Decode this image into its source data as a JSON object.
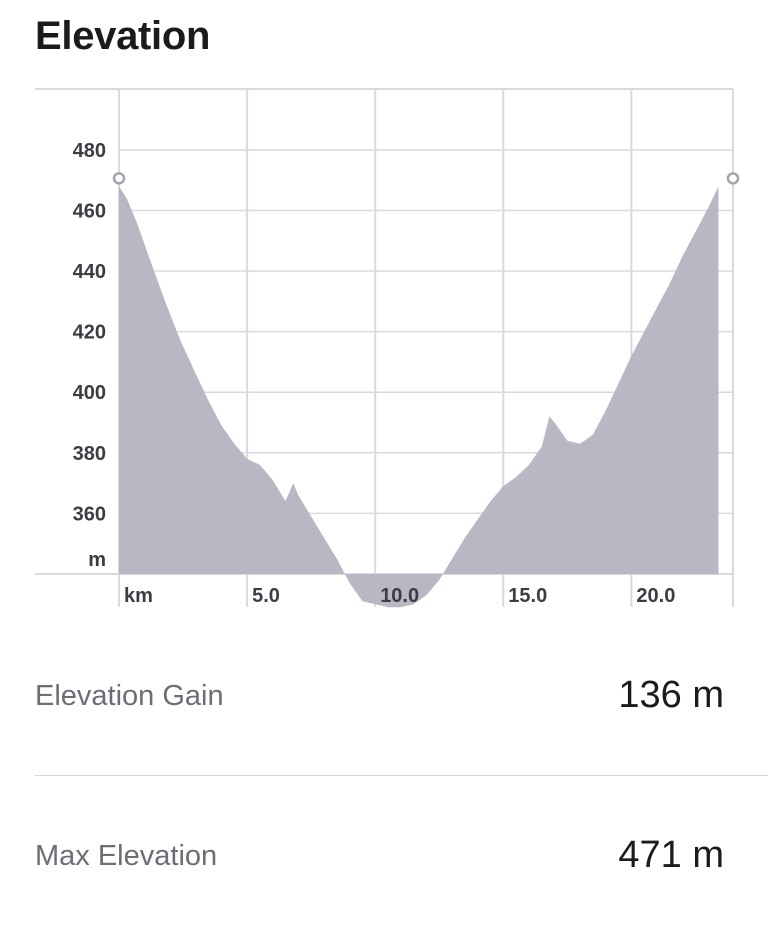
{
  "header": {
    "title": "Elevation"
  },
  "chart_data": {
    "type": "area",
    "x_unit": "km",
    "y_unit": "m",
    "x_ticks": [
      "5.0",
      "10.0",
      "15.0",
      "20.0"
    ],
    "y_ticks": [
      "360",
      "380",
      "400",
      "420",
      "440",
      "460",
      "480"
    ],
    "xlim": [
      0,
      24
    ],
    "ylim": [
      340,
      490
    ],
    "grid": true,
    "fill_color": "#b8b8c4",
    "x": [
      0,
      0.3,
      0.7,
      1.2,
      1.8,
      2.4,
      3.0,
      3.5,
      4.0,
      4.5,
      5.0,
      5.5,
      6.0,
      6.5,
      6.8,
      7.0,
      7.5,
      8.0,
      8.5,
      9.0,
      9.5,
      10.0,
      10.5,
      11.0,
      11.5,
      12.0,
      12.5,
      13.0,
      13.5,
      14.0,
      14.5,
      15.0,
      15.5,
      16.0,
      16.5,
      16.8,
      17.0,
      17.5,
      18.0,
      18.5,
      19.0,
      19.5,
      20.0,
      20.5,
      21.0,
      21.5,
      22.0,
      22.5,
      23.0,
      23.4
    ],
    "y": [
      468,
      464,
      456,
      444,
      430,
      417,
      406,
      397,
      389,
      383,
      378,
      376,
      371,
      364,
      370,
      366,
      359,
      352,
      345,
      337,
      331,
      330,
      329,
      329,
      330,
      333,
      338,
      345,
      352,
      358,
      364,
      369,
      372,
      376,
      382,
      392,
      390,
      384,
      383,
      386,
      394,
      403,
      412,
      420,
      428,
      436,
      445,
      453,
      461,
      468
    ],
    "endpoints": "hollow circles"
  },
  "stats": [
    {
      "label": "Elevation Gain",
      "value": "136 m"
    },
    {
      "label": "Max Elevation",
      "value": "471 m"
    }
  ],
  "colors": {
    "area": "#b8b8c4",
    "grid": "#d9d9df",
    "axis_text": "#3c3c44",
    "title": "#1b1b1f",
    "stat_label": "#6d6d78"
  }
}
